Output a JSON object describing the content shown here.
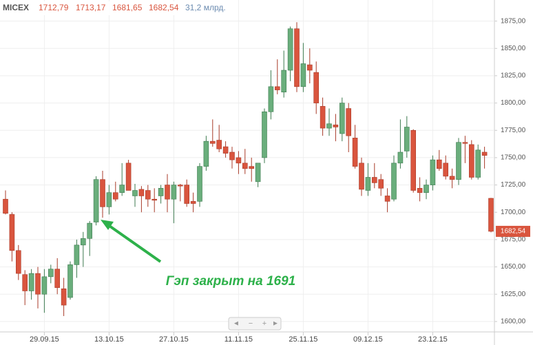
{
  "chart_data": {
    "type": "candlestick",
    "legend": {
      "name": "MICEX",
      "values": [
        {
          "value": 1712.79,
          "label": "1712,79"
        },
        {
          "value": 1713.17,
          "label": "1713,17"
        },
        {
          "value": 1681.65,
          "label": "1681,65"
        },
        {
          "value": 1682.54,
          "label": "1682,54"
        }
      ],
      "volume": "31,2 млрд."
    },
    "annotation": "Гэп закрыт на 1691",
    "last_price": {
      "value": 1682.54,
      "label": "1682,54"
    },
    "up_color": "#6aae7c",
    "down_color": "#d9553e",
    "grid": true,
    "ylim": [
      1593,
      1888
    ],
    "yticks": [
      {
        "value": 1600,
        "label": "1600,00"
      },
      {
        "value": 1625,
        "label": "1625,00"
      },
      {
        "value": 1650,
        "label": "1650,00"
      },
      {
        "value": 1675,
        "label": "1675,00"
      },
      {
        "value": 1700,
        "label": "1700,00"
      },
      {
        "value": 1725,
        "label": "1725,00"
      },
      {
        "value": 1750,
        "label": "1750,00"
      },
      {
        "value": 1775,
        "label": "1775,00"
      },
      {
        "value": 1800,
        "label": "1800,00"
      },
      {
        "value": 1825,
        "label": "1825,00"
      },
      {
        "value": 1850,
        "label": "1850,00"
      },
      {
        "value": 1875,
        "label": "1875,00"
      }
    ],
    "categories": [
      null,
      null,
      null,
      null,
      null,
      null,
      "29.09.15",
      null,
      null,
      null,
      null,
      null,
      null,
      null,
      null,
      null,
      "13.10.15",
      null,
      null,
      null,
      null,
      null,
      null,
      null,
      null,
      null,
      "27.10.15",
      null,
      null,
      null,
      null,
      null,
      null,
      null,
      null,
      null,
      "11.11.15",
      null,
      null,
      null,
      null,
      null,
      null,
      null,
      null,
      null,
      "25.11.15",
      null,
      null,
      null,
      null,
      null,
      null,
      null,
      null,
      null,
      "09.12.15",
      null,
      null,
      null,
      null,
      null,
      null,
      null,
      null,
      null,
      "23.12.15",
      null,
      null,
      null,
      null,
      null,
      null,
      null,
      null,
      null
    ],
    "open": [
      1712,
      1698,
      1665,
      1643,
      1628,
      1644,
      1625,
      1641,
      1648,
      1630,
      1622,
      1652,
      1670,
      1676,
      1691,
      1730,
      1705,
      1718,
      1718,
      1745,
      1715,
      1721,
      1720,
      1712,
      1715,
      1725,
      1712,
      1725,
      1725,
      1710,
      1710,
      1742,
      1765,
      1766,
      1760,
      1755,
      1750,
      1745,
      1742,
      1728,
      1750,
      1792,
      1815,
      1810,
      1830,
      1868,
      1815,
      1835,
      1828,
      1797,
      1777,
      1780,
      1772,
      1795,
      1768,
      1745,
      1720,
      1732,
      1730,
      1715,
      1712,
      1745,
      1756,
      1775,
      1722,
      1718,
      1725,
      1748,
      1745,
      1733,
      1730,
      1764,
      1762,
      1732,
      1755,
      1712.79
    ],
    "high": [
      1720,
      1700,
      1670,
      1647,
      1648,
      1650,
      1648,
      1652,
      1658,
      1640,
      1655,
      1675,
      1682,
      1692,
      1733,
      1738,
      1725,
      1728,
      1745,
      1748,
      1726,
      1724,
      1725,
      1722,
      1725,
      1735,
      1728,
      1726,
      1730,
      1718,
      1745,
      1770,
      1785,
      1780,
      1765,
      1760,
      1756,
      1758,
      1750,
      1745,
      1795,
      1830,
      1840,
      1848,
      1870,
      1874,
      1855,
      1850,
      1838,
      1805,
      1795,
      1790,
      1805,
      1800,
      1780,
      1750,
      1745,
      1745,
      1735,
      1722,
      1752,
      1785,
      1788,
      1776,
      1732,
      1730,
      1752,
      1757,
      1752,
      1740,
      1768,
      1770,
      1766,
      1762,
      1760,
      1713.17
    ],
    "low": [
      1698,
      1655,
      1638,
      1615,
      1620,
      1612,
      1608,
      1635,
      1625,
      1605,
      1620,
      1640,
      1650,
      1660,
      1688,
      1695,
      1698,
      1710,
      1715,
      1720,
      1705,
      1700,
      1705,
      1700,
      1708,
      1700,
      1690,
      1710,
      1705,
      1700,
      1705,
      1738,
      1760,
      1755,
      1750,
      1740,
      1735,
      1735,
      1728,
      1723,
      1745,
      1785,
      1808,
      1805,
      1820,
      1810,
      1810,
      1818,
      1790,
      1770,
      1770,
      1765,
      1765,
      1755,
      1740,
      1715,
      1715,
      1722,
      1715,
      1700,
      1710,
      1740,
      1750,
      1718,
      1710,
      1712,
      1720,
      1738,
      1730,
      1722,
      1725,
      1745,
      1730,
      1730,
      1740,
      1681.65
    ],
    "close": [
      1699,
      1665,
      1644,
      1628,
      1644,
      1625,
      1641,
      1648,
      1631,
      1615,
      1652,
      1670,
      1676,
      1690,
      1730,
      1705,
      1718,
      1712,
      1725,
      1720,
      1720,
      1715,
      1712,
      1711,
      1722,
      1712,
      1725,
      1724,
      1708,
      1708,
      1742,
      1765,
      1763,
      1758,
      1754,
      1748,
      1745,
      1740,
      1740,
      1745,
      1792,
      1815,
      1812,
      1830,
      1868,
      1815,
      1836,
      1830,
      1800,
      1777,
      1781,
      1778,
      1800,
      1770,
      1742,
      1721,
      1732,
      1727,
      1722,
      1710,
      1745,
      1755,
      1778,
      1720,
      1718,
      1725,
      1748,
      1740,
      1733,
      1730,
      1764,
      1763,
      1732,
      1757,
      1752,
      1682.54
    ]
  }
}
